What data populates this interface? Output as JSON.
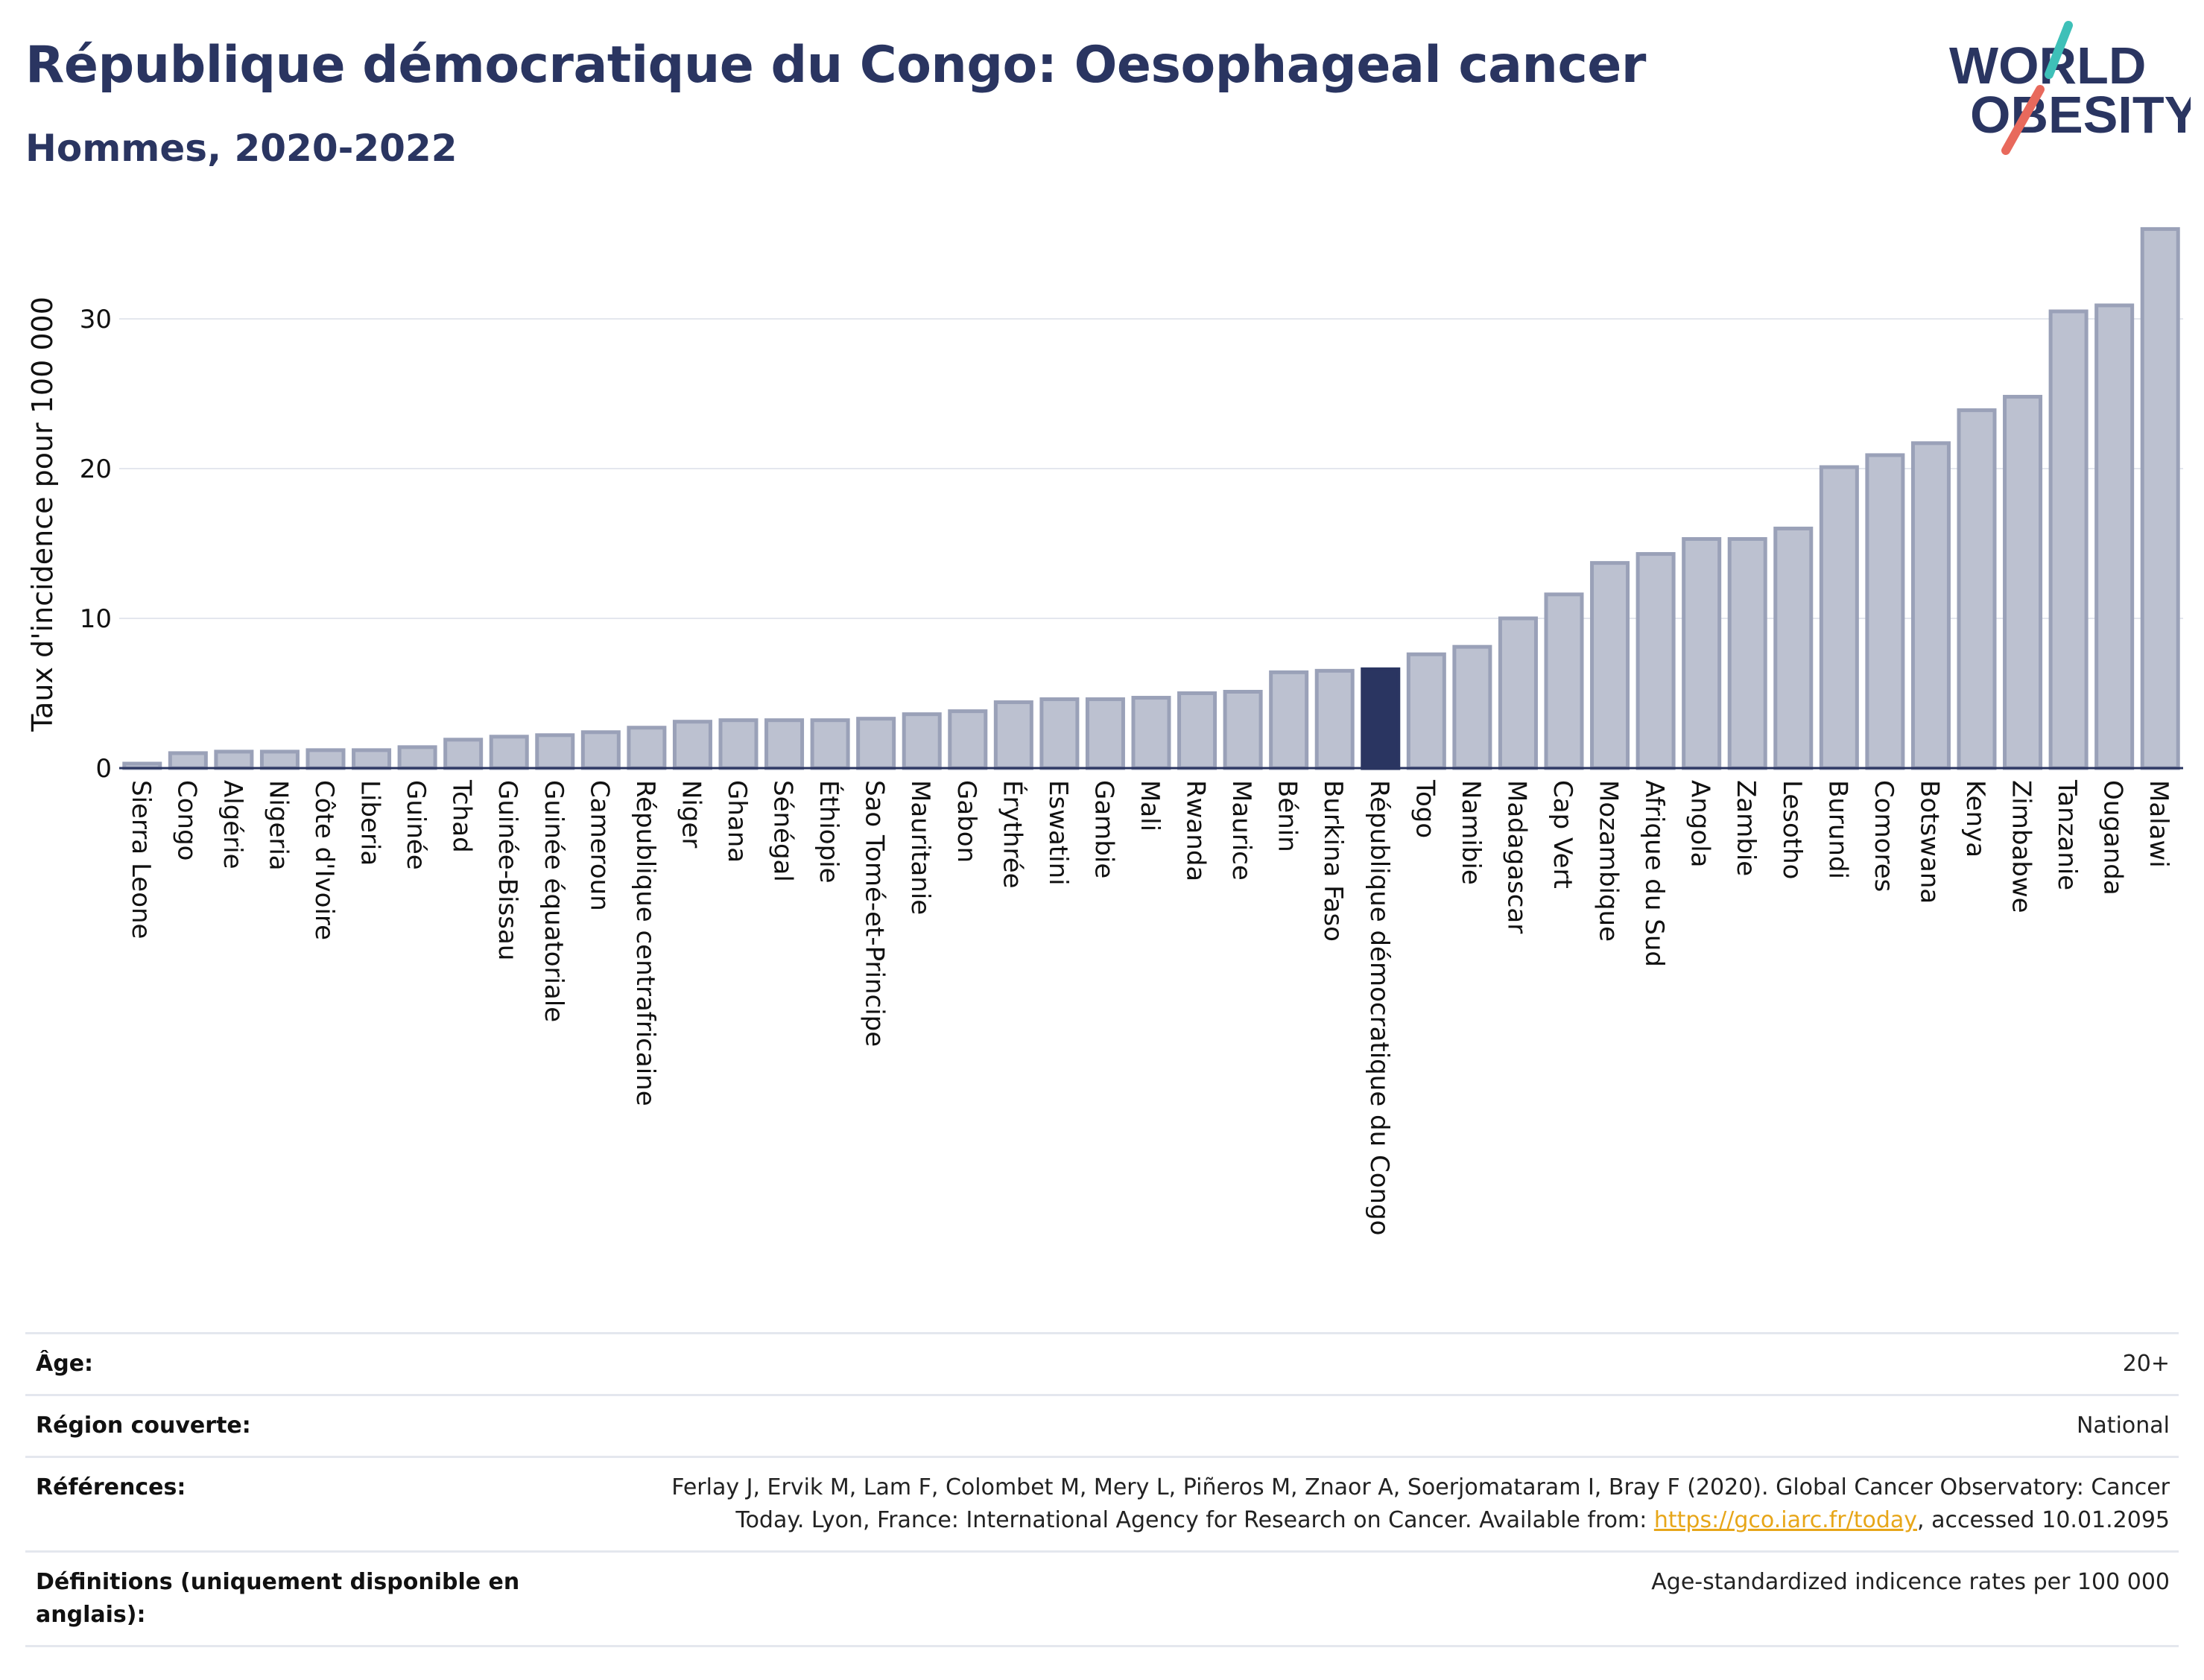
{
  "header": {
    "title": "République démocratique du Congo: Oesophageal cancer",
    "subtitle": "Hommes, 2020-2022",
    "logo_line1": "WORLD",
    "logo_line2": "OBESITY"
  },
  "chart_data": {
    "type": "bar",
    "title": "République démocratique du Congo: Oesophageal cancer",
    "subtitle": "Hommes, 2020-2022",
    "xlabel": "",
    "ylabel": "Taux d'incidence pour 100 000",
    "ylim": [
      0,
      37
    ],
    "yticks": [
      0,
      10,
      20,
      30
    ],
    "grid": true,
    "highlight": "République démocratique du Congo",
    "colors": {
      "bar": "#bcc1d0",
      "bar_edge": "#9aa1b8",
      "highlight": "#2a3561",
      "grid": "#e4e7ee",
      "axis": "#2a3561"
    },
    "categories": [
      "Sierra Leone",
      "Congo",
      "Algérie",
      "Nigeria",
      "Côte d'Ivoire",
      "Liberia",
      "Guinée",
      "Tchad",
      "Guinée-Bissau",
      "Guinée équatoriale",
      "Cameroun",
      "République centrafricaine",
      "Niger",
      "Ghana",
      "Sénégal",
      "Éthiopie",
      "Sao Tomé-et-Principe",
      "Mauritanie",
      "Gabon",
      "Érythrée",
      "Eswatini",
      "Gambie",
      "Mali",
      "Rwanda",
      "Maurice",
      "Bénin",
      "Burkina Faso",
      "République démocratique du Congo",
      "Togo",
      "Namibie",
      "Madagascar",
      "Cap Vert",
      "Mozambique",
      "Afrique du Sud",
      "Angola",
      "Zambie",
      "Lesotho",
      "Burundi",
      "Comores",
      "Botswana",
      "Kenya",
      "Zimbabwe",
      "Tanzanie",
      "Ouganda",
      "Malawi"
    ],
    "values": [
      0.3,
      1.0,
      1.1,
      1.1,
      1.2,
      1.2,
      1.4,
      1.9,
      2.1,
      2.2,
      2.4,
      2.7,
      3.1,
      3.2,
      3.2,
      3.2,
      3.3,
      3.6,
      3.8,
      4.4,
      4.6,
      4.6,
      4.7,
      5.0,
      5.1,
      6.4,
      6.5,
      6.6,
      7.6,
      8.1,
      10.0,
      11.6,
      13.7,
      14.3,
      15.3,
      15.3,
      16.0,
      20.1,
      20.9,
      21.7,
      23.9,
      24.8,
      30.5,
      30.9,
      36.0
    ]
  },
  "meta": [
    {
      "label": "Âge:",
      "value": "20+"
    },
    {
      "label": "Région couverte:",
      "value": "National"
    },
    {
      "label": "Références:",
      "value_line1": "Ferlay J, Ervik M, Lam F, Colombet M, Mery L, Piñeros M, Znaor A, Soerjomataram I, Bray F (2020). Global Cancer Observatory: Cancer",
      "value_line2_pre": "Today. Lyon, France: International Agency for Research on Cancer. Available from: ",
      "value_link": "https://gco.iarc.fr/today",
      "value_line2_post": ", accessed 10.01.2095"
    },
    {
      "label_line1": "Définitions (uniquement disponible en",
      "label_line2": "anglais):",
      "value": "Age-standardized indicence rates per 100 000"
    }
  ]
}
